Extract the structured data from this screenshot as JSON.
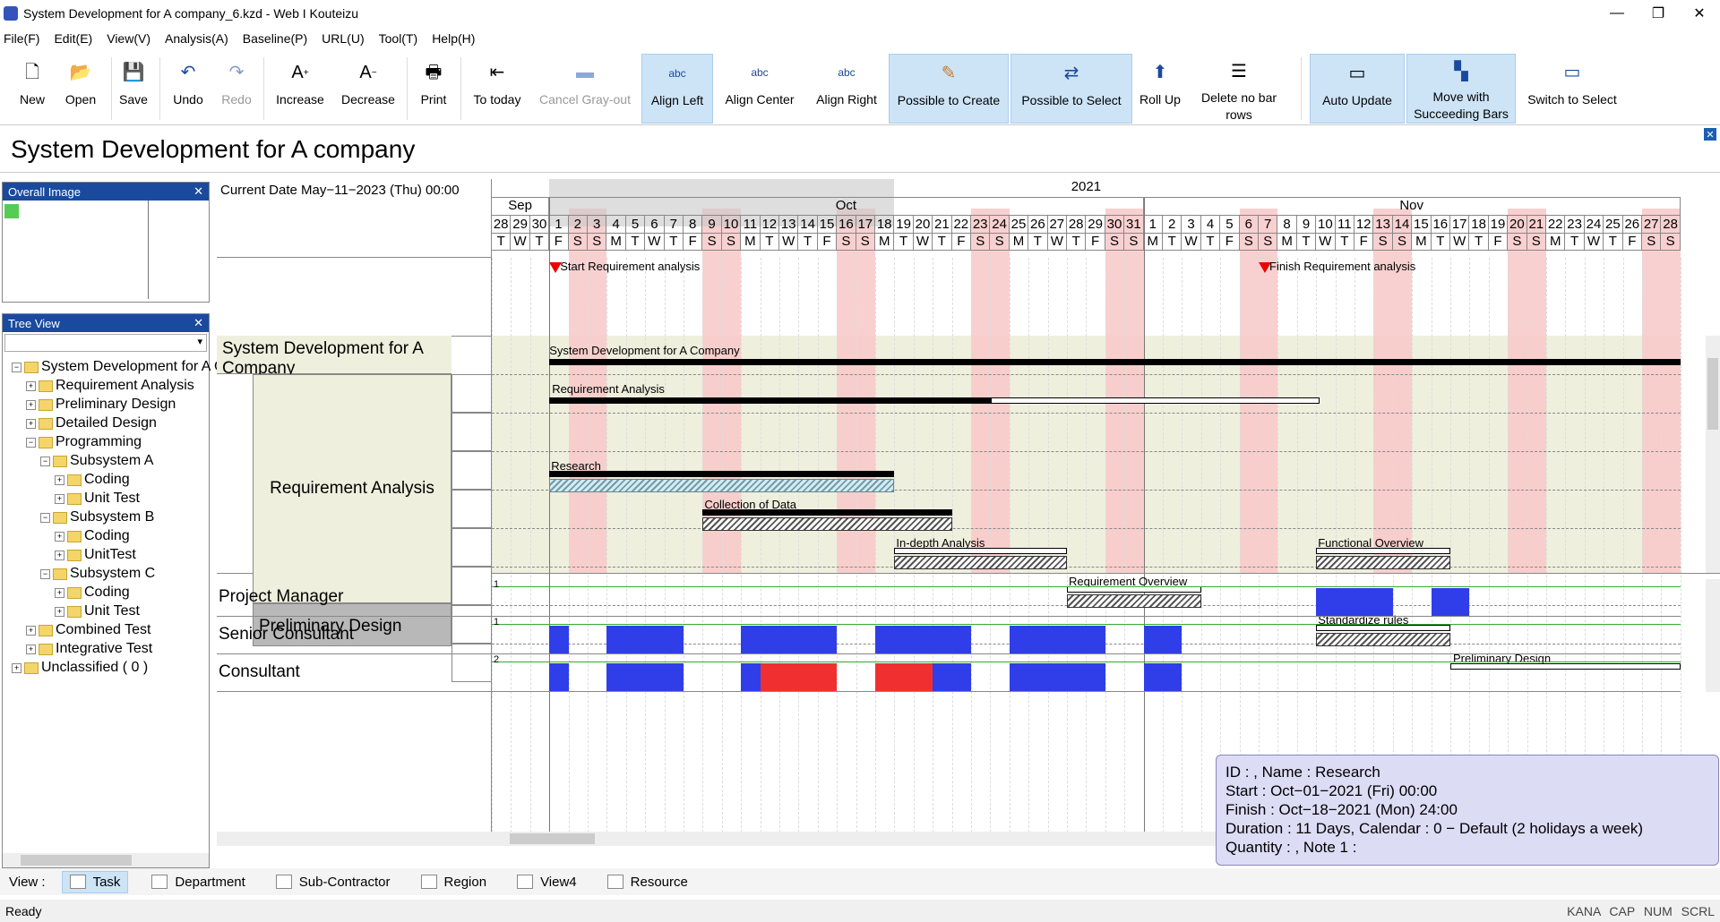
{
  "window": {
    "title": "System Development for A company_6.kzd - Web I Kouteizu",
    "controls": [
      "—",
      "❐",
      "✕"
    ]
  },
  "menu": [
    "File(F)",
    "Edit(E)",
    "View(V)",
    "Analysis(A)",
    "Baseline(P)",
    "URL(U)",
    "Tool(T)",
    "Help(H)"
  ],
  "toolbar": [
    {
      "label": "New",
      "icon": "new-file-icon"
    },
    {
      "label": "Open",
      "icon": "open-folder-icon"
    },
    {
      "label": "Save",
      "icon": "save-icon"
    },
    {
      "label": "Undo",
      "icon": "undo-icon"
    },
    {
      "label": "Redo",
      "icon": "redo-icon"
    },
    {
      "label": "Increase",
      "icon": "increase-font-icon"
    },
    {
      "label": "Decrease",
      "icon": "decrease-font-icon"
    },
    {
      "label": "Print",
      "icon": "print-icon"
    },
    {
      "label": "To today",
      "icon": "to-today-icon"
    },
    {
      "label": "Cancel Gray-out",
      "icon": "cancel-grayout-icon"
    },
    {
      "label": "Align Left",
      "icon": "align-left-icon"
    },
    {
      "label": "Align Center",
      "icon": "align-center-icon"
    },
    {
      "label": "Align Right",
      "icon": "align-right-icon"
    },
    {
      "label": "Possible to Create",
      "icon": "possible-create-icon"
    },
    {
      "label": "Possible to Select",
      "icon": "possible-select-icon"
    },
    {
      "label": "Roll Up",
      "icon": "roll-up-icon"
    },
    {
      "label": "Delete no bar rows",
      "icon": "delete-rows-icon"
    },
    {
      "label": "Auto Update",
      "icon": "auto-update-icon"
    },
    {
      "label": "Move with Succeeding Bars",
      "icon": "move-succeeding-icon"
    },
    {
      "label": "Switch to Select",
      "icon": "switch-select-icon"
    }
  ],
  "toolbar_icon_text": "abc",
  "document_title": "System Development for A company",
  "overview": {
    "title": "Overall Image"
  },
  "tree": {
    "title": "Tree View",
    "nodes": [
      {
        "label": "System Development for A Company",
        "level": 0,
        "exp": "−"
      },
      {
        "label": "Requirement Analysis",
        "level": 1,
        "exp": "+"
      },
      {
        "label": "Preliminary Design",
        "level": 1,
        "exp": "+"
      },
      {
        "label": "Detailed Design",
        "level": 1,
        "exp": "+"
      },
      {
        "label": "Programming",
        "level": 1,
        "exp": "−"
      },
      {
        "label": "Subsystem A",
        "level": 2,
        "exp": "−"
      },
      {
        "label": "Coding",
        "level": 3,
        "exp": "+"
      },
      {
        "label": "Unit Test",
        "level": 3,
        "exp": "+"
      },
      {
        "label": "Subsystem B",
        "level": 2,
        "exp": "−"
      },
      {
        "label": "Coding",
        "level": 3,
        "exp": "+"
      },
      {
        "label": "UnitTest",
        "level": 3,
        "exp": "+"
      },
      {
        "label": "Subsystem C",
        "level": 2,
        "exp": "−"
      },
      {
        "label": "Coding",
        "level": 3,
        "exp": "+"
      },
      {
        "label": "Unit Test",
        "level": 3,
        "exp": "+"
      },
      {
        "label": "Combined Test",
        "level": 1,
        "exp": "+"
      },
      {
        "label": "Integrative Test",
        "level": 1,
        "exp": "+"
      },
      {
        "label": "Unclassified ( 0 )",
        "level": 0,
        "exp": "+"
      }
    ]
  },
  "gantt": {
    "current_date": "Current Date May−11−2023 (Thu) 00:00",
    "year": "2021",
    "months": [
      "Sep",
      "Oct",
      "Nov"
    ],
    "days": [
      "28",
      "29",
      "30",
      "1",
      "2",
      "3",
      "4",
      "5",
      "6",
      "7",
      "8",
      "9",
      "10",
      "11",
      "12",
      "13",
      "14",
      "15",
      "16",
      "17",
      "18",
      "19",
      "20",
      "21",
      "22",
      "23",
      "24",
      "25",
      "26",
      "27",
      "28",
      "29",
      "30",
      "31",
      "1",
      "2",
      "3",
      "4",
      "5",
      "6",
      "7",
      "8",
      "9",
      "10",
      "11",
      "12",
      "13",
      "14",
      "15",
      "16",
      "17",
      "18",
      "19",
      "20",
      "21",
      "22",
      "23",
      "24",
      "25",
      "26",
      "27",
      "28"
    ],
    "weekdays": [
      "T",
      "W",
      "T",
      "F",
      "S",
      "S",
      "M",
      "T",
      "W",
      "T",
      "F",
      "S",
      "S",
      "M",
      "T",
      "W",
      "T",
      "F",
      "S",
      "S",
      "M",
      "T",
      "W",
      "T",
      "F",
      "S",
      "S",
      "M",
      "T",
      "W",
      "T",
      "F",
      "S",
      "S",
      "M",
      "T",
      "W",
      "T",
      "F",
      "S",
      "S",
      "M",
      "T",
      "W",
      "T",
      "F",
      "S",
      "S",
      "M",
      "T",
      "W",
      "T",
      "F",
      "S",
      "S",
      "M",
      "T",
      "W",
      "T",
      "F",
      "S",
      "S"
    ],
    "milestones": [
      "Start Requirement analysis",
      "Finish Requirement analysis"
    ],
    "rows": {
      "system": "System Development for A Company",
      "requirement": "Requirement Analysis",
      "preliminary": "Preliminary Design"
    },
    "bars": {
      "system": "System Development for A Company",
      "requirement": "Requirement Analysis",
      "research": "Research",
      "collection": "Collection of Data",
      "indepth": "In-depth Analysis",
      "reqoverview": "Requirement Overview",
      "funcoverview": "Functional Overview",
      "standardize": "Standardize rules",
      "preliminary": "Preliminary Design"
    },
    "resources": [
      "Project Manager",
      "Senior Consultant",
      "Consultant"
    ],
    "resource_marks": [
      "1",
      "2"
    ]
  },
  "tooltip": {
    "line1": "ID : , Name : Research",
    "line2": "Start : Oct−01−2021 (Fri) 00:00",
    "line3": "Finish : Oct−18−2021 (Mon) 24:00",
    "line4": "Duration : 11 Days, Calendar : 0 − Default (2 holidays a week)",
    "line5": "Quantity : , Note 1 :"
  },
  "viewbar": {
    "label": "View :",
    "tabs": [
      "Task",
      "Department",
      "Sub-Contractor",
      "Region",
      "View4",
      "Resource"
    ]
  },
  "status": {
    "text": "Ready",
    "indicators": [
      "KANA",
      "CAP",
      "NUM",
      "SCRL"
    ]
  },
  "colors": {
    "holiday": "#f8c8c8",
    "grayout": "#c8c8c8",
    "beige": "#efefde",
    "resource": "#2f3ee8",
    "overload": "#f03030",
    "panel_head": "#1a4a9e"
  }
}
